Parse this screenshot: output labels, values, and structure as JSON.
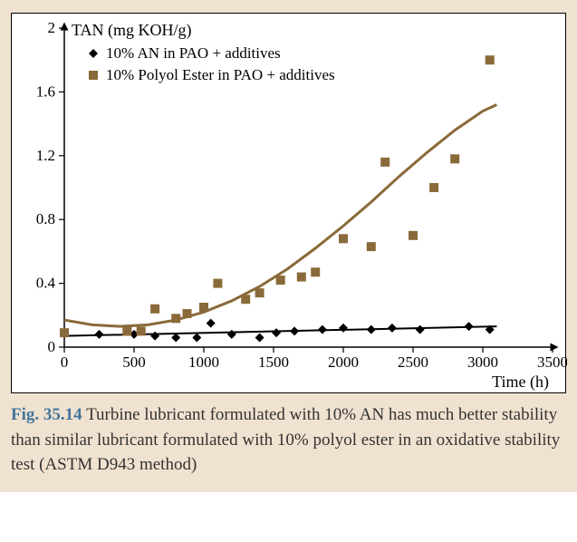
{
  "chart": {
    "type": "scatter+line",
    "y_axis_title": "TAN (mg KOH/g)",
    "x_axis_title": "Time (h)",
    "xlim": [
      0,
      3500
    ],
    "ylim": [
      0,
      2
    ],
    "xtick_step": 500,
    "ytick_step": 0.4,
    "xticks": [
      0,
      500,
      1000,
      1500,
      2000,
      2500,
      3000,
      3500
    ],
    "yticks": [
      0,
      0.4,
      0.8,
      1.2,
      1.6,
      2
    ],
    "background_color": "#ffffff",
    "container_bg": "#f0e2d0",
    "axis_color": "#000000",
    "grid": false,
    "title_fontsize": 18,
    "tick_fontsize": 17,
    "series": [
      {
        "name": "10% AN in PAO + additives",
        "marker": "diamond",
        "marker_color": "#000000",
        "line_color": "#000000",
        "line_width": 2,
        "points": [
          [
            250,
            0.08
          ],
          [
            500,
            0.08
          ],
          [
            650,
            0.07
          ],
          [
            800,
            0.06
          ],
          [
            950,
            0.06
          ],
          [
            1050,
            0.15
          ],
          [
            1200,
            0.08
          ],
          [
            1400,
            0.06
          ],
          [
            1520,
            0.09
          ],
          [
            1650,
            0.1
          ],
          [
            1850,
            0.11
          ],
          [
            2000,
            0.12
          ],
          [
            2200,
            0.11
          ],
          [
            2350,
            0.12
          ],
          [
            2550,
            0.11
          ],
          [
            2900,
            0.13
          ],
          [
            3050,
            0.11
          ]
        ],
        "trend_line": [
          [
            0,
            0.07
          ],
          [
            3100,
            0.13
          ]
        ]
      },
      {
        "name": "10% Polyol Ester in PAO + additives",
        "marker": "square",
        "marker_color": "#8a6a3a",
        "line_color": "#8a6a3a",
        "line_width": 3,
        "points": [
          [
            0,
            0.09
          ],
          [
            450,
            0.1
          ],
          [
            550,
            0.1
          ],
          [
            650,
            0.24
          ],
          [
            800,
            0.18
          ],
          [
            880,
            0.21
          ],
          [
            1000,
            0.25
          ],
          [
            1100,
            0.4
          ],
          [
            1300,
            0.3
          ],
          [
            1400,
            0.34
          ],
          [
            1550,
            0.42
          ],
          [
            1700,
            0.44
          ],
          [
            1800,
            0.47
          ],
          [
            2000,
            0.68
          ],
          [
            2200,
            0.63
          ],
          [
            2300,
            1.16
          ],
          [
            2500,
            0.7
          ],
          [
            2650,
            1.0
          ],
          [
            2800,
            1.18
          ],
          [
            3050,
            1.8
          ]
        ],
        "trend_curve": [
          [
            0,
            0.17
          ],
          [
            200,
            0.14
          ],
          [
            400,
            0.13
          ],
          [
            600,
            0.14
          ],
          [
            800,
            0.17
          ],
          [
            1000,
            0.22
          ],
          [
            1200,
            0.29
          ],
          [
            1400,
            0.38
          ],
          [
            1600,
            0.49
          ],
          [
            1800,
            0.62
          ],
          [
            2000,
            0.76
          ],
          [
            2200,
            0.91
          ],
          [
            2400,
            1.07
          ],
          [
            2600,
            1.22
          ],
          [
            2800,
            1.36
          ],
          [
            3000,
            1.48
          ],
          [
            3100,
            1.52
          ]
        ]
      }
    ],
    "legend": {
      "entries": [
        {
          "marker": "diamond",
          "color": "#000000",
          "label": "10% AN in PAO + additives"
        },
        {
          "marker": "square",
          "color": "#8a6a3a",
          "label": "10% Polyol Ester in PAO + additives"
        }
      ],
      "fontsize": 17
    }
  },
  "caption": {
    "label": "Fig. 35.14",
    "text": "Turbine lubricant formulated with 10% AN has much better stability than similar lubricant formulated with 10% polyol ester in an oxidative stability test (ASTM D943 method)",
    "label_color": "#42759c",
    "text_color": "#333333",
    "fontsize": 19
  }
}
